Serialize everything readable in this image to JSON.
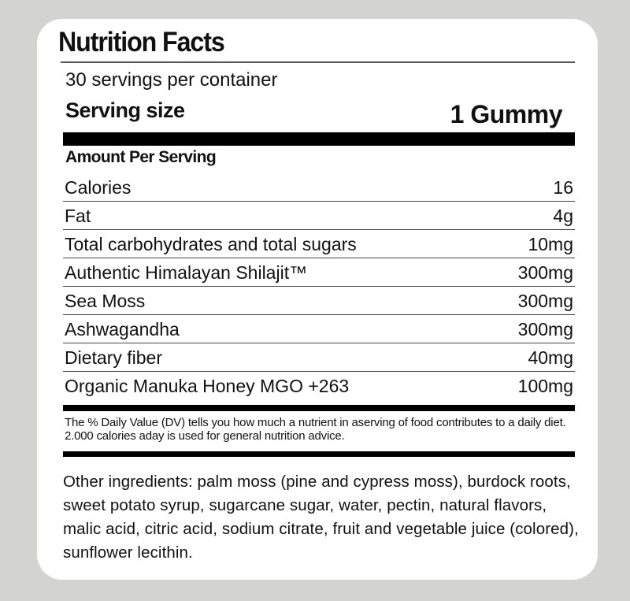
{
  "label": {
    "title": "Nutrition Facts",
    "servings_per_container": "30 servings per container",
    "serving_size_label": "Serving size",
    "serving_size_value": "1 Gummy",
    "amount_per_serving": "Amount Per Serving",
    "nutrients": [
      {
        "name": "Calories",
        "amount": "16"
      },
      {
        "name": "Fat",
        "amount": "4g"
      },
      {
        "name": "Total carbohydrates and total sugars",
        "amount": "10mg"
      },
      {
        "name": "Authentic Himalayan Shilajit™",
        "amount": "300mg"
      },
      {
        "name": "Sea Moss",
        "amount": "300mg"
      },
      {
        "name": "Ashwagandha",
        "amount": "300mg"
      },
      {
        "name": "Dietary fiber",
        "amount": "40mg"
      },
      {
        "name": "Organic Manuka Honey MGO +263",
        "amount": "100mg"
      }
    ],
    "dv_note": "The % Daily Value (DV) tells you how much a nutrient in aserving of food contributes to a daily diet. 2.000 calories aday is used for general nutrition advice.",
    "other_ingredients": "Other ingredients: palm moss (pine and cypress moss), burdock roots, sweet potato syrup, sugarcane sugar, water, pectin, natural flavors, malic acid, citric acid, sodium citrate, fruit and vegetable juice (colored), sunflower lecithin."
  },
  "colors": {
    "background": "#d3d4cf",
    "card": "#ffffff",
    "text": "#111111"
  }
}
